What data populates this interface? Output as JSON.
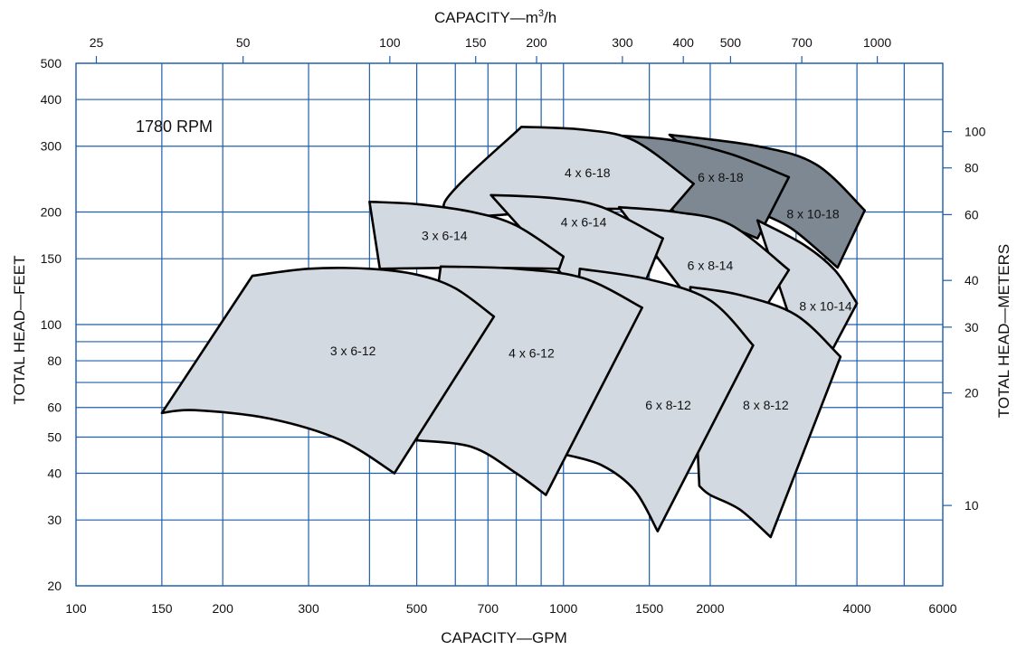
{
  "chart_data": {
    "type": "area",
    "subtitle": "1780 RPM",
    "xlabel": "CAPACITY—GPM",
    "ylabel": "TOTAL HEAD—FEET",
    "x2label_main": "CAPACITY—m",
    "x2label_exp": "3",
    "x2label_tail": "/h",
    "y2label": "TOTAL HEAD—METERS",
    "x_scale": "log",
    "y_scale": "log",
    "xlim": [
      100,
      6000
    ],
    "ylim": [
      20,
      500
    ],
    "grid": true,
    "x_ticks": [
      100,
      150,
      200,
      300,
      500,
      700,
      1000,
      1500,
      2000,
      4000,
      6000
    ],
    "x_tick_labels": [
      "100",
      "150",
      "200",
      "300",
      "500",
      "700",
      "1000",
      "1500",
      "2000",
      "4000",
      "6000"
    ],
    "x_grid": [
      100,
      150,
      200,
      300,
      400,
      500,
      600,
      700,
      800,
      900,
      1000,
      1500,
      2000,
      3000,
      4000,
      5000,
      6000
    ],
    "y_ticks": [
      20,
      30,
      40,
      50,
      60,
      80,
      100,
      150,
      200,
      300,
      400,
      500
    ],
    "y_tick_labels": [
      "20",
      "30",
      "40",
      "50",
      "60",
      "80",
      "100",
      "150",
      "200",
      "300",
      "400",
      "500"
    ],
    "y_grid": [
      20,
      30,
      40,
      50,
      60,
      70,
      80,
      90,
      100,
      150,
      200,
      300,
      400,
      500
    ],
    "x2_ticks": [
      25,
      50,
      100,
      150,
      200,
      300,
      400,
      500,
      700,
      1000
    ],
    "x2_tick_labels": [
      "25",
      "50",
      "100",
      "150",
      "200",
      "300",
      "400",
      "500",
      "700",
      "1000"
    ],
    "y2_ticks": [
      10,
      20,
      30,
      40,
      60,
      80,
      100
    ],
    "y2_tick_labels": [
      "10",
      "20",
      "30",
      "40",
      "60",
      "80",
      "100"
    ],
    "colors": {
      "light": "#d3d9e0",
      "dark": "#7d8892",
      "grid": "#1f5fad",
      "outline": "#000000"
    },
    "regions": [
      {
        "name": "8 x 10-18",
        "shade": "dark",
        "label_at": [
          3250,
          198
        ],
        "top": [
          [
            1650,
            322
          ],
          [
            2500,
            300
          ],
          [
            3300,
            268
          ],
          [
            4150,
            202
          ]
        ],
        "right": [
          [
            4150,
            202
          ],
          [
            3650,
            142
          ]
        ],
        "bottom": [
          [
            3650,
            142
          ],
          [
            2950,
            180
          ],
          [
            2500,
            200
          ]
        ],
        "left": [
          [
            2500,
            200
          ],
          [
            1650,
            322
          ]
        ]
      },
      {
        "name": "6 x 8-18",
        "shade": "dark",
        "label_at": [
          2100,
          248
        ],
        "top": [
          [
            1200,
            322
          ],
          [
            1650,
            312
          ],
          [
            2200,
            286
          ],
          [
            2900,
            248
          ]
        ],
        "right": [
          [
            2900,
            248
          ],
          [
            2500,
            170
          ]
        ],
        "bottom": [
          [
            2500,
            170
          ],
          [
            2100,
            186
          ],
          [
            1700,
            198
          ]
        ],
        "left": [
          [
            1700,
            198
          ],
          [
            1200,
            322
          ]
        ]
      },
      {
        "name": "8 x 10-14",
        "shade": "light",
        "label_at": [
          3450,
          112
        ],
        "top": [
          [
            2500,
            190
          ],
          [
            3100,
            164
          ],
          [
            3600,
            140
          ],
          [
            4000,
            114
          ]
        ],
        "right": [
          [
            4000,
            114
          ],
          [
            3550,
            85
          ]
        ],
        "bottom": [
          [
            3550,
            85
          ],
          [
            3100,
            95
          ],
          [
            2900,
            106
          ]
        ],
        "left": [
          [
            2900,
            106
          ],
          [
            2500,
            190
          ]
        ]
      },
      {
        "name": "4 x 6-18",
        "shade": "light",
        "label_at": [
          1120,
          255
        ],
        "top": [
          [
            820,
            338
          ],
          [
            1100,
            332
          ],
          [
            1400,
            310
          ],
          [
            1850,
            238
          ]
        ],
        "right": [
          [
            1850,
            238
          ],
          [
            1650,
            200
          ]
        ],
        "bottom": [
          [
            1650,
            200
          ],
          [
            1200,
            204
          ],
          [
            680,
            195
          ]
        ],
        "left": [
          [
            680,
            195
          ],
          [
            570,
            212
          ],
          [
            820,
            338
          ]
        ]
      },
      {
        "name": "6 x 8-14",
        "shade": "light",
        "label_at": [
          2000,
          144
        ],
        "top": [
          [
            1300,
            206
          ],
          [
            1700,
            200
          ],
          [
            2200,
            185
          ],
          [
            2900,
            140
          ]
        ],
        "right": [
          [
            2900,
            140
          ],
          [
            2500,
            103
          ]
        ],
        "bottom": [
          [
            2500,
            103
          ],
          [
            2100,
            112
          ],
          [
            1750,
            124
          ]
        ],
        "left": [
          [
            1750,
            124
          ],
          [
            1300,
            206
          ]
        ]
      },
      {
        "name": "4 x 6-14",
        "shade": "light",
        "label_at": [
          1100,
          188
        ],
        "top": [
          [
            710,
            222
          ],
          [
            950,
            218
          ],
          [
            1200,
            206
          ],
          [
            1600,
            170
          ]
        ],
        "right": [
          [
            1600,
            170
          ],
          [
            1450,
            124
          ]
        ],
        "bottom": [
          [
            1450,
            124
          ],
          [
            1250,
            129
          ],
          [
            1000,
            135
          ]
        ],
        "left": [
          [
            1000,
            135
          ],
          [
            710,
            222
          ]
        ]
      },
      {
        "name": "3 x 6-14",
        "shade": "light",
        "label_at": [
          570,
          173
        ],
        "top": [
          [
            400,
            213
          ],
          [
            500,
            210
          ],
          [
            650,
            200
          ],
          [
            800,
            184
          ],
          [
            1000,
            152
          ]
        ],
        "right": [
          [
            1000,
            152
          ],
          [
            980,
            141
          ]
        ],
        "bottom": [
          [
            980,
            141
          ],
          [
            650,
            142
          ],
          [
            420,
            141
          ]
        ],
        "left": [
          [
            420,
            141
          ],
          [
            400,
            213
          ]
        ]
      },
      {
        "name": "8 x 8-12",
        "shade": "light",
        "label_at": [
          2600,
          61
        ],
        "top": [
          [
            1820,
            126
          ],
          [
            2300,
            120
          ],
          [
            3000,
            106
          ],
          [
            3700,
            82
          ]
        ],
        "right": [
          [
            3700,
            82
          ],
          [
            2660,
            27
          ]
        ],
        "bottom": [
          [
            2660,
            27
          ],
          [
            2300,
            32
          ],
          [
            2000,
            35
          ],
          [
            1900,
            37
          ]
        ],
        "left": [
          [
            1900,
            37
          ],
          [
            1820,
            126
          ]
        ]
      },
      {
        "name": "6 x 8-12",
        "shade": "light",
        "label_at": [
          1640,
          61
        ],
        "top": [
          [
            1080,
            141
          ],
          [
            1500,
            132
          ],
          [
            2000,
            116
          ],
          [
            2450,
            88
          ]
        ],
        "right": [
          [
            2450,
            88
          ],
          [
            1560,
            28
          ]
        ],
        "bottom": [
          [
            1560,
            28
          ],
          [
            1400,
            36
          ],
          [
            1200,
            42
          ],
          [
            1000,
            45
          ]
        ],
        "left": [
          [
            1000,
            45
          ],
          [
            1080,
            141
          ]
        ]
      },
      {
        "name": "4 x 6-12",
        "shade": "light",
        "label_at": [
          860,
          84
        ],
        "top": [
          [
            560,
            143
          ],
          [
            800,
            141
          ],
          [
            1100,
            133
          ],
          [
            1450,
            111
          ]
        ],
        "right": [
          [
            1450,
            111
          ],
          [
            920,
            35
          ]
        ],
        "bottom": [
          [
            920,
            35
          ],
          [
            800,
            40
          ],
          [
            650,
            47
          ],
          [
            500,
            49
          ]
        ],
        "left": [
          [
            500,
            49
          ],
          [
            560,
            143
          ]
        ]
      },
      {
        "name": "3 x 6-12",
        "shade": "light",
        "label_at": [
          370,
          85
        ],
        "top": [
          [
            230,
            135
          ],
          [
            300,
            141
          ],
          [
            400,
            141
          ],
          [
            500,
            136
          ],
          [
            600,
            125
          ],
          [
            720,
            105
          ]
        ],
        "right": [
          [
            720,
            105
          ],
          [
            450,
            40
          ]
        ],
        "bottom": [
          [
            450,
            40
          ],
          [
            350,
            49
          ],
          [
            250,
            56
          ],
          [
            175,
            59
          ],
          [
            150,
            58
          ]
        ],
        "left": [
          [
            150,
            58
          ],
          [
            230,
            135
          ]
        ]
      }
    ]
  }
}
